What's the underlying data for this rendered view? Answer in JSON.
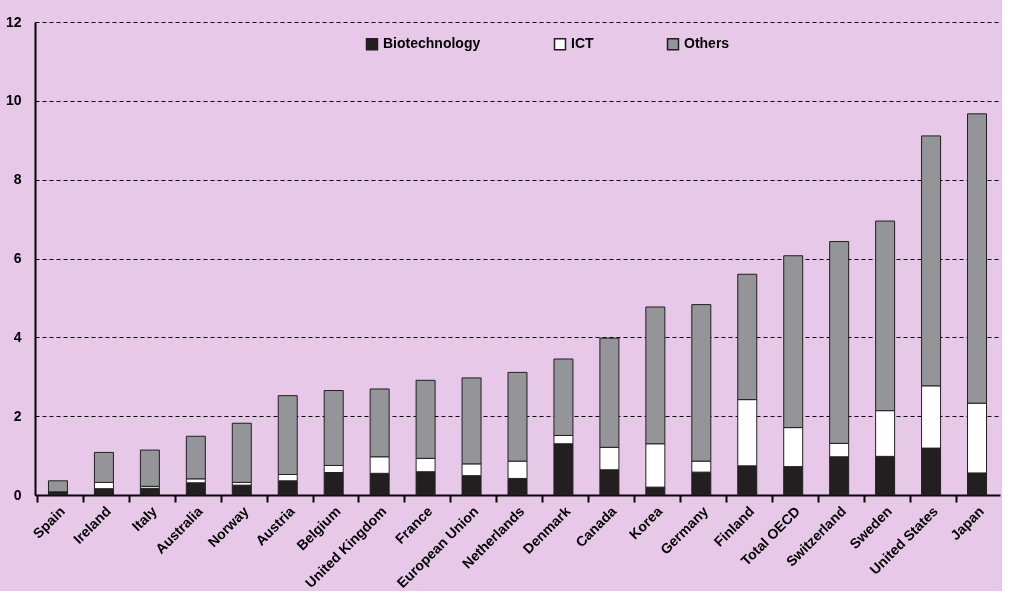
{
  "chart_data": {
    "type": "bar",
    "stacked": true,
    "categories": [
      "Spain",
      "Ireland",
      "Italy",
      "Australia",
      "Norway",
      "Austria",
      "Belgium",
      "United Kingdom",
      "France",
      "European Union",
      "Netherlands",
      "Denmark",
      "Canada",
      "Korea",
      "Germany",
      "Finland",
      "Total OECD",
      "Switzerland",
      "Sweden",
      "United States",
      "Japan"
    ],
    "series": [
      {
        "name": "Biotechnology",
        "color": "#231f20",
        "values": [
          0.08,
          0.16,
          0.17,
          0.31,
          0.25,
          0.36,
          0.57,
          0.55,
          0.59,
          0.49,
          0.42,
          1.3,
          0.64,
          0.2,
          0.58,
          0.74,
          0.72,
          0.97,
          0.98,
          1.19,
          0.56
        ]
      },
      {
        "name": "ICT",
        "color": "#ffffff",
        "values": [
          0.0,
          0.16,
          0.05,
          0.1,
          0.07,
          0.16,
          0.18,
          0.42,
          0.34,
          0.3,
          0.44,
          0.21,
          0.57,
          1.1,
          0.28,
          1.68,
          0.99,
          0.34,
          1.16,
          1.58,
          1.77
        ]
      },
      {
        "name": "Others",
        "color": "#939598",
        "values": [
          0.28,
          0.76,
          0.92,
          1.08,
          1.5,
          2.0,
          1.9,
          1.72,
          1.98,
          2.18,
          2.25,
          1.94,
          2.77,
          3.47,
          3.97,
          3.18,
          4.36,
          5.12,
          4.81,
          6.34,
          7.34
        ]
      }
    ],
    "ylim": [
      0,
      12
    ],
    "yticks": [
      0,
      2,
      4,
      6,
      8,
      10,
      12
    ],
    "grid": "y",
    "line_style": "dashed",
    "legend": "top"
  }
}
